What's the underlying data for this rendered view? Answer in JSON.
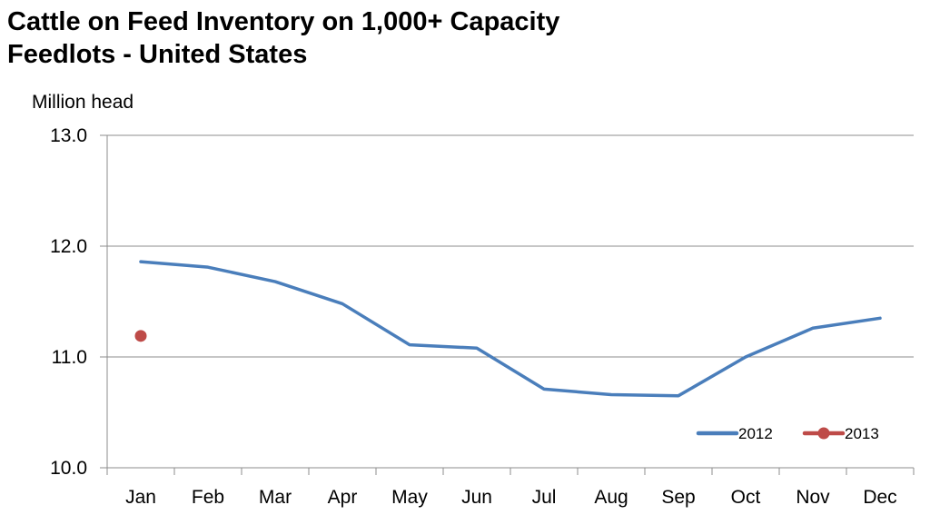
{
  "title_line1": "Cattle on Feed Inventory on 1,000+ Capacity",
  "title_line2": "Feedlots - United States",
  "chart_data": {
    "type": "line",
    "title": "Cattle on Feed Inventory on 1,000+ Capacity Feedlots - United States",
    "ylabel": "Million head",
    "xlabel": "",
    "categories": [
      "Jan",
      "Feb",
      "Mar",
      "Apr",
      "May",
      "Jun",
      "Jul",
      "Aug",
      "Sep",
      "Oct",
      "Nov",
      "Dec"
    ],
    "ylim": [
      10.0,
      13.0
    ],
    "yticks": [
      "10.0",
      "11.0",
      "12.0",
      "13.0"
    ],
    "grid": "horizontal",
    "legend_position": "bottom-right",
    "series": [
      {
        "name": "2012",
        "color": "#4a7ebb",
        "values": [
          11.86,
          11.81,
          11.68,
          11.48,
          11.11,
          11.08,
          10.71,
          10.66,
          10.65,
          11.0,
          11.26,
          11.35
        ]
      },
      {
        "name": "2013",
        "color": "#be4b48",
        "values": [
          11.19,
          null,
          null,
          null,
          null,
          null,
          null,
          null,
          null,
          null,
          null,
          null
        ]
      }
    ]
  }
}
